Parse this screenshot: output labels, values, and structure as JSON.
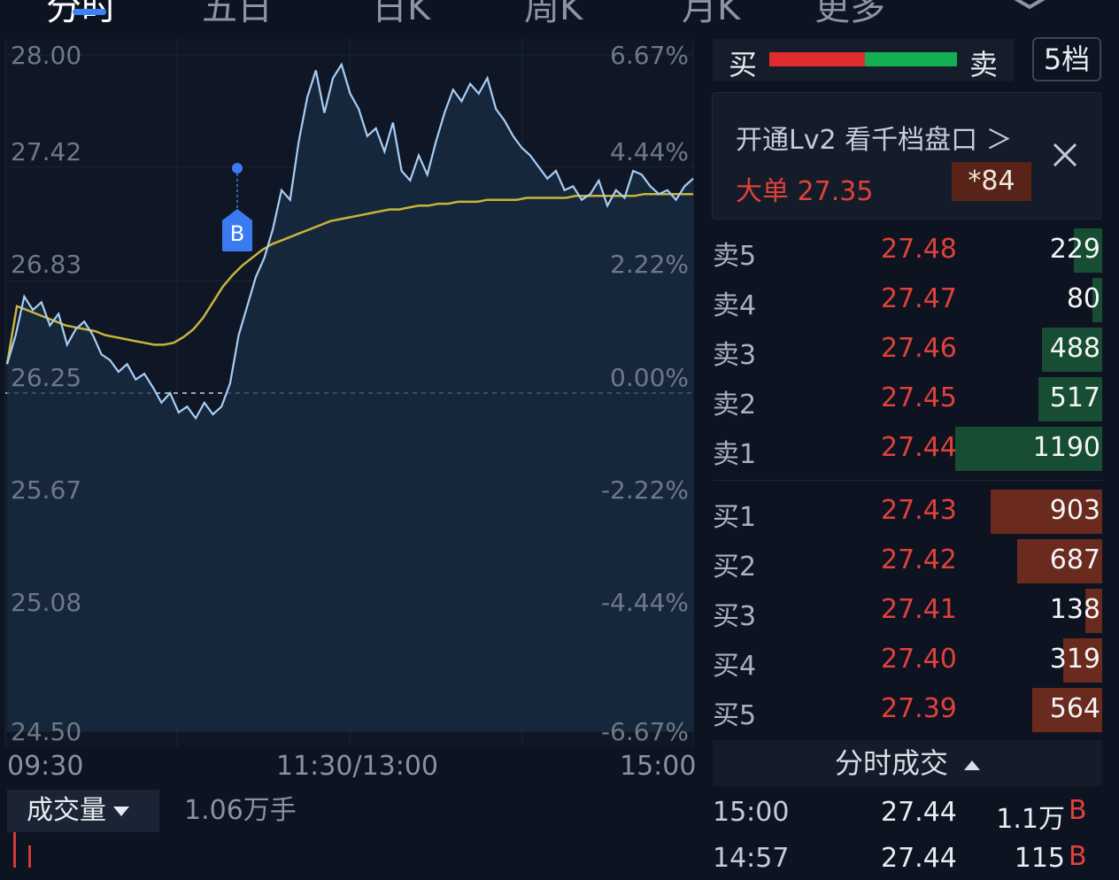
{
  "tabs": [
    {
      "label": "分时",
      "active": true
    },
    {
      "label": "五日",
      "active": false
    },
    {
      "label": "日K",
      "active": false
    },
    {
      "label": "周K",
      "active": false
    },
    {
      "label": "月K",
      "active": false
    },
    {
      "label": "更多",
      "active": false
    }
  ],
  "chart": {
    "price_labels": [
      "28.00",
      "27.42",
      "26.83",
      "26.25",
      "25.67",
      "25.08",
      "24.50"
    ],
    "pct_labels": [
      "6.67%",
      "4.44%",
      "2.22%",
      "0.00%",
      "-2.22%",
      "-4.44%",
      "-6.67%"
    ],
    "time_labels": [
      "09:30",
      "11:30/13:00",
      "15:00"
    ],
    "b_marker": "B",
    "colors": {
      "price_line": "#a9cdf5",
      "avg_line": "#c8b43a",
      "fill": "#1a2d44"
    }
  },
  "chart_data": {
    "type": "line",
    "ylim": [
      24.5,
      28.0
    ],
    "reference_price": 26.25,
    "x_range": [
      "09:30",
      "15:00"
    ],
    "series": [
      {
        "values": [
          26.4,
          26.55,
          26.75,
          26.68,
          26.72,
          26.6,
          26.66,
          26.5,
          26.58,
          26.62,
          26.55,
          26.45,
          26.42,
          26.36,
          26.4,
          26.32,
          26.35,
          26.28,
          26.2,
          26.25,
          26.15,
          26.18,
          26.12,
          26.2,
          26.14,
          26.18,
          26.3,
          26.55,
          26.7,
          26.85,
          26.95,
          27.1,
          27.3,
          27.25,
          27.55,
          27.78,
          27.92,
          27.7,
          27.88,
          27.95,
          27.8,
          27.72,
          27.58,
          27.62,
          27.5,
          27.65,
          27.4,
          27.35,
          27.48,
          27.38,
          27.55,
          27.7,
          27.82,
          27.76,
          27.85,
          27.8,
          27.88,
          27.72,
          27.66,
          27.58,
          27.52,
          27.48,
          27.42,
          27.36,
          27.4,
          27.3,
          27.32,
          27.25,
          27.28,
          27.35,
          27.22,
          27.3,
          27.26,
          27.4,
          27.38,
          27.32,
          27.28,
          27.3,
          27.25,
          27.32,
          27.36
        ]
      },
      {
        "values": [
          26.4,
          26.7,
          26.68,
          26.66,
          26.64,
          26.62,
          26.6,
          26.59,
          26.58,
          26.57,
          26.55,
          26.54,
          26.53,
          26.52,
          26.51,
          26.5,
          26.5,
          26.51,
          26.54,
          26.58,
          26.64,
          26.72,
          26.8,
          26.86,
          26.91,
          26.95,
          26.99,
          27.02,
          27.04,
          27.06,
          27.08,
          27.1,
          27.12,
          27.14,
          27.15,
          27.16,
          27.17,
          27.18,
          27.19,
          27.2,
          27.2,
          27.21,
          27.22,
          27.22,
          27.23,
          27.23,
          27.24,
          27.24,
          27.24,
          27.25,
          27.25,
          27.25,
          27.25,
          27.26,
          27.26,
          27.26,
          27.26,
          27.26,
          27.27,
          27.27,
          27.27,
          27.27,
          27.27,
          27.27,
          27.27,
          27.28,
          27.28,
          27.28,
          27.28,
          27.28,
          27.28
        ]
      }
    ]
  },
  "volume": {
    "label": "成交量",
    "value": "1.06万手"
  },
  "order_summary": {
    "buy": "买",
    "sell": "卖",
    "level_button": "5档"
  },
  "lv2_banner": {
    "title": "开通Lv2 看千档盘口 ＞",
    "big_order": "大单 27.35",
    "badge": "*84"
  },
  "asks": [
    {
      "label": "卖5",
      "price": "27.48",
      "qty": "229",
      "depth": 229
    },
    {
      "label": "卖4",
      "price": "27.47",
      "qty": "80",
      "depth": 80
    },
    {
      "label": "卖3",
      "price": "27.46",
      "qty": "488",
      "depth": 488
    },
    {
      "label": "卖2",
      "price": "27.45",
      "qty": "517",
      "depth": 517
    },
    {
      "label": "卖1",
      "price": "27.44",
      "qty": "1190",
      "depth": 1190
    }
  ],
  "bids": [
    {
      "label": "买1",
      "price": "27.43",
      "qty": "903",
      "depth": 903
    },
    {
      "label": "买2",
      "price": "27.42",
      "qty": "687",
      "depth": 687
    },
    {
      "label": "买3",
      "price": "27.41",
      "qty": "138",
      "depth": 138
    },
    {
      "label": "买4",
      "price": "27.40",
      "qty": "319",
      "depth": 319
    },
    {
      "label": "买5",
      "price": "27.39",
      "qty": "564",
      "depth": 564
    }
  ],
  "trades": {
    "header": "分时成交",
    "rows": [
      {
        "time": "15:00",
        "price": "27.44",
        "volume": "1.1万",
        "side": "B"
      },
      {
        "time": "14:57",
        "price": "27.44",
        "volume": "115",
        "side": "B"
      }
    ]
  }
}
